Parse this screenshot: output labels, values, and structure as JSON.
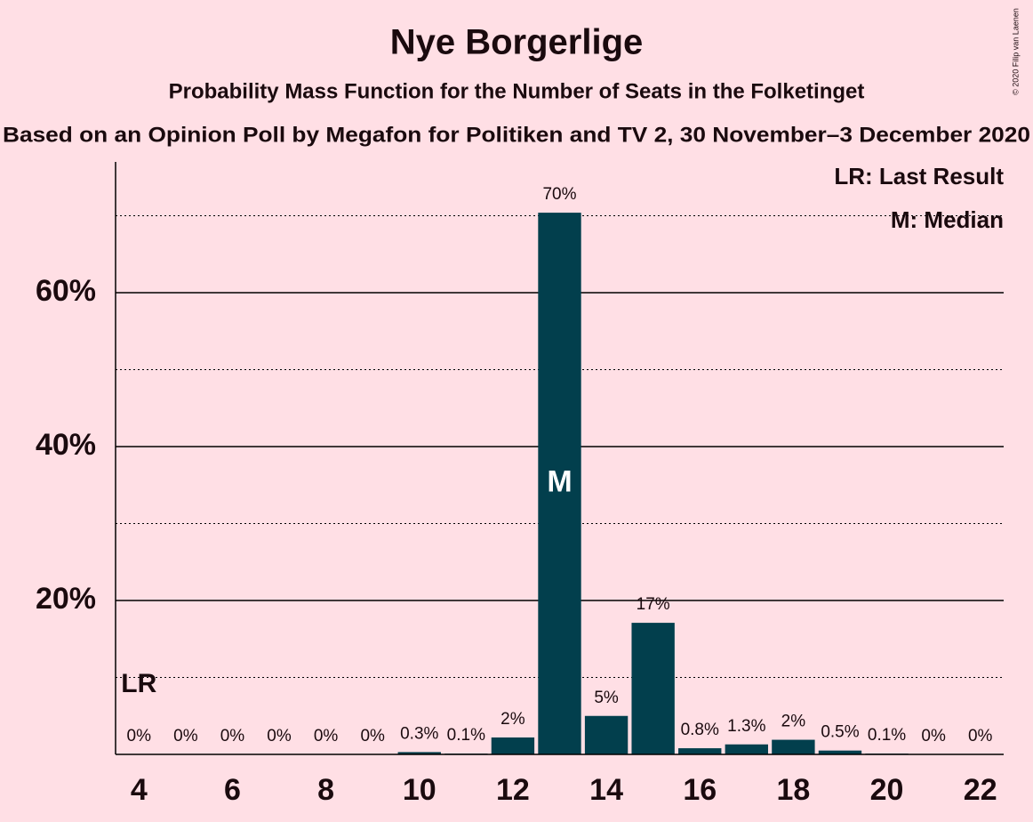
{
  "chart_data": {
    "type": "bar",
    "title": "Nye Borgerlige",
    "subtitle": "Probability Mass Function for the Number of Seats in the Folketinget",
    "subtitle2": "Based on an Opinion Poll by Megafon for Politiken and TV 2, 30 November–3 December 2020",
    "copyright": "© 2020 Filip van Laenen",
    "x": [
      4,
      5,
      6,
      7,
      8,
      9,
      10,
      11,
      12,
      13,
      14,
      15,
      16,
      17,
      18,
      19,
      20,
      21,
      22
    ],
    "values": [
      0,
      0,
      0,
      0,
      0,
      0,
      0.3,
      0.1,
      2.2,
      70.4,
      5,
      17.1,
      0.8,
      1.3,
      1.9,
      0.5,
      0.1,
      0,
      0
    ],
    "value_labels": [
      "0%",
      "0%",
      "0%",
      "0%",
      "0%",
      "0%",
      "0.3%",
      "0.1%",
      "2%",
      "70%",
      "5%",
      "17%",
      "0.8%",
      "1.3%",
      "2%",
      "0.5%",
      "0.1%",
      "0%",
      "0%"
    ],
    "color": "#023f4d",
    "xlim": [
      3.5,
      22.5
    ],
    "xticks": [
      4,
      6,
      8,
      10,
      12,
      14,
      16,
      18,
      20,
      22
    ],
    "ylim": [
      0,
      77
    ],
    "yticks": [
      {
        "value": 20,
        "label": "20%"
      },
      {
        "value": 40,
        "label": "40%"
      },
      {
        "value": 60,
        "label": "60%"
      }
    ],
    "minor_yticks": [
      10,
      30,
      50,
      70
    ],
    "grid": true,
    "last_result": {
      "x": 4,
      "label": "LR"
    },
    "median": {
      "x": 13,
      "label": "M"
    },
    "legend": [
      "LR: Last Result",
      "M: Median"
    ]
  }
}
